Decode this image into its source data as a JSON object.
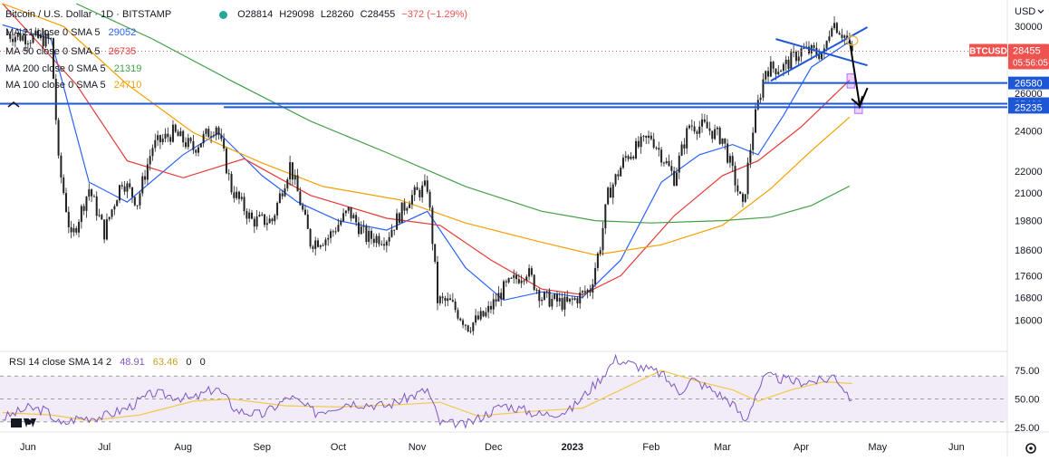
{
  "header": {
    "symbol_title": "Bitcoin / U.S. Dollar · 1D · BITSTAMP",
    "ohlc": [
      "O28814",
      "H29098",
      "L28260",
      "C28455",
      "−372 (−1.29%)"
    ],
    "currency": "USD"
  },
  "indicators": [
    {
      "label": "MA 21 close 0 SMA 5",
      "value": "29052",
      "color": "#2962ff"
    },
    {
      "label": "MA 50 close 0 SMA 5",
      "value": "26735",
      "color": "#e53935"
    },
    {
      "label": "MA 200 close 0 SMA 5",
      "value": "21319",
      "color": "#43a047"
    },
    {
      "label": "MA 100 close 0 SMA 5",
      "value": "24710",
      "color": "#f59f00"
    }
  ],
  "rsi": {
    "label": "RSI 14 close SMA 14 2",
    "values_text": [
      "48.91",
      "63.46",
      "0",
      "0"
    ]
  },
  "price_tag": {
    "symbol": "BTCUSD",
    "price": "28455",
    "timer": "05:56:05",
    "color": "#ef5350"
  },
  "level_tags": [
    {
      "text": "26580",
      "value": 26580
    },
    {
      "text": "25428",
      "value": 25428
    },
    {
      "text": "25235",
      "value": 25235
    }
  ],
  "axis": {
    "y_ticks": [
      "30000",
      "26000",
      "24000",
      "22000",
      "21000",
      "19800",
      "18600",
      "17600",
      "16800",
      "16000"
    ],
    "x_ticks": [
      "Jun",
      "Jul",
      "Aug",
      "Sep",
      "Oct",
      "Nov",
      "Dec",
      "2023",
      "Feb",
      "Mar",
      "Apr",
      "May",
      "Jun"
    ],
    "rsi_ticks": [
      "75.00",
      "50.00",
      "25.00"
    ]
  },
  "chart_data": {
    "type": "candlestick",
    "log_scale": true,
    "ylim": [
      15200,
      31500
    ],
    "x_start": "2022-05-21",
    "x_end": "2023-06-21",
    "candles_daily_close": [
      [
        "2022-05-24",
        29500
      ],
      [
        "2022-06-10",
        29100
      ],
      [
        "2022-06-13",
        22400
      ],
      [
        "2022-06-18",
        19000
      ],
      [
        "2022-06-25",
        21200
      ],
      [
        "2022-07-01",
        19300
      ],
      [
        "2022-07-08",
        21600
      ],
      [
        "2022-07-14",
        20600
      ],
      [
        "2022-07-20",
        23200
      ],
      [
        "2022-07-28",
        23900
      ],
      [
        "2022-08-05",
        23100
      ],
      [
        "2022-08-14",
        24300
      ],
      [
        "2022-08-20",
        21200
      ],
      [
        "2022-08-28",
        19800
      ],
      [
        "2022-09-05",
        19800
      ],
      [
        "2022-09-12",
        22300
      ],
      [
        "2022-09-20",
        18900
      ],
      [
        "2022-09-27",
        19100
      ],
      [
        "2022-10-05",
        20200
      ],
      [
        "2022-10-12",
        19100
      ],
      [
        "2022-10-20",
        19100
      ],
      [
        "2022-10-29",
        20800
      ],
      [
        "2022-11-05",
        21300
      ],
      [
        "2022-11-09",
        16700
      ],
      [
        "2022-11-14",
        16600
      ],
      [
        "2022-11-21",
        15800
      ],
      [
        "2022-11-28",
        16200
      ],
      [
        "2022-12-05",
        17100
      ],
      [
        "2022-12-14",
        17800
      ],
      [
        "2022-12-20",
        16800
      ],
      [
        "2022-12-30",
        16550
      ],
      [
        "2023-01-08",
        17100
      ],
      [
        "2023-01-12",
        18800
      ],
      [
        "2023-01-15",
        20900
      ],
      [
        "2023-01-22",
        22700
      ],
      [
        "2023-02-01",
        23700
      ],
      [
        "2023-02-10",
        21700
      ],
      [
        "2023-02-16",
        24300
      ],
      [
        "2023-02-22",
        24200
      ],
      [
        "2023-03-01",
        23600
      ],
      [
        "2023-03-09",
        20300
      ],
      [
        "2023-03-13",
        24100
      ],
      [
        "2023-03-18",
        27400
      ],
      [
        "2023-03-25",
        27500
      ],
      [
        "2023-04-01",
        28500
      ],
      [
        "2023-04-10",
        28300
      ],
      [
        "2023-04-13",
        30400
      ],
      [
        "2023-04-18",
        29400
      ],
      [
        "2023-04-21",
        28455
      ]
    ],
    "ma_lines": [
      {
        "name": "MA 21",
        "color": "#2962ff",
        "points": [
          [
            "2022-05-22",
            30100
          ],
          [
            "2022-06-10",
            29200
          ],
          [
            "2022-06-25",
            21500
          ],
          [
            "2022-07-10",
            20600
          ],
          [
            "2022-08-01",
            22800
          ],
          [
            "2022-08-15",
            23900
          ],
          [
            "2022-09-01",
            21800
          ],
          [
            "2022-09-15",
            20600
          ],
          [
            "2022-10-01",
            19800
          ],
          [
            "2022-10-20",
            19400
          ],
          [
            "2022-11-05",
            20200
          ],
          [
            "2022-11-20",
            17900
          ],
          [
            "2022-12-05",
            16700
          ],
          [
            "2022-12-20",
            17000
          ],
          [
            "2023-01-05",
            16800
          ],
          [
            "2023-01-20",
            18200
          ],
          [
            "2023-02-05",
            21500
          ],
          [
            "2023-02-20",
            22800
          ],
          [
            "2023-03-05",
            23300
          ],
          [
            "2023-03-15",
            22800
          ],
          [
            "2023-03-25",
            24800
          ],
          [
            "2023-04-05",
            27500
          ],
          [
            "2023-04-20",
            29052
          ]
        ]
      },
      {
        "name": "MA 50",
        "color": "#e53935",
        "points": [
          [
            "2022-05-22",
            31500
          ],
          [
            "2022-06-20",
            26500
          ],
          [
            "2022-07-10",
            22500
          ],
          [
            "2022-08-01",
            21700
          ],
          [
            "2022-08-25",
            22600
          ],
          [
            "2022-09-20",
            20900
          ],
          [
            "2022-10-20",
            19900
          ],
          [
            "2022-11-10",
            19600
          ],
          [
            "2022-11-30",
            18200
          ],
          [
            "2022-12-20",
            17100
          ],
          [
            "2023-01-05",
            16900
          ],
          [
            "2023-01-20",
            17600
          ],
          [
            "2023-02-10",
            20000
          ],
          [
            "2023-03-01",
            21800
          ],
          [
            "2023-03-15",
            22500
          ],
          [
            "2023-04-01",
            24200
          ],
          [
            "2023-04-20",
            26735
          ]
        ]
      },
      {
        "name": "MA 100",
        "color": "#f59f00",
        "points": [
          [
            "2022-05-22",
            31500
          ],
          [
            "2022-06-15",
            30000
          ],
          [
            "2022-07-10",
            26500
          ],
          [
            "2022-08-05",
            23900
          ],
          [
            "2022-09-01",
            22400
          ],
          [
            "2022-09-25",
            21300
          ],
          [
            "2022-10-25",
            20700
          ],
          [
            "2022-11-20",
            19700
          ],
          [
            "2022-12-20",
            18900
          ],
          [
            "2023-01-10",
            18400
          ],
          [
            "2023-02-05",
            18800
          ],
          [
            "2023-03-01",
            19600
          ],
          [
            "2023-03-20",
            21200
          ],
          [
            "2023-04-05",
            23000
          ],
          [
            "2023-04-20",
            24710
          ]
        ]
      },
      {
        "name": "MA 200",
        "color": "#43a047",
        "points": [
          [
            "2022-06-20",
            31500
          ],
          [
            "2022-07-20",
            29200
          ],
          [
            "2022-08-20",
            26700
          ],
          [
            "2022-09-20",
            24500
          ],
          [
            "2022-10-20",
            22900
          ],
          [
            "2022-11-20",
            21300
          ],
          [
            "2022-12-20",
            20200
          ],
          [
            "2023-01-10",
            19800
          ],
          [
            "2023-02-01",
            19700
          ],
          [
            "2023-03-01",
            19800
          ],
          [
            "2023-03-20",
            19950
          ],
          [
            "2023-04-05",
            20450
          ],
          [
            "2023-04-20",
            21319
          ]
        ]
      }
    ],
    "horizontal_levels": [
      {
        "value": 26580,
        "from": "2023-03-17",
        "to": "2023-06-21",
        "color": "#1e57d6"
      },
      {
        "value": 25428,
        "from": "2022-05-21",
        "to": "2023-06-21",
        "color": "#1e57d6"
      },
      {
        "value": 25235,
        "from": "2022-08-17",
        "to": "2023-06-21",
        "color": "#1e57d6"
      }
    ],
    "trend_lines": [
      {
        "from": [
          "2023-03-20",
          26700
        ],
        "to": [
          "2023-04-27",
          29950
        ],
        "color": "#1e57d6"
      },
      {
        "from": [
          "2023-03-22",
          29200
        ],
        "to": [
          "2023-04-27",
          27600
        ],
        "color": "#1e57d6"
      }
    ],
    "arrow": {
      "from": [
        "2023-04-20",
        29100
      ],
      "to": [
        "2023-04-24",
        25300
      ],
      "then": [
        "2023-04-27",
        26300
      ],
      "color": "#000000"
    },
    "zones": [
      {
        "from": "2023-04-19",
        "to": "2023-04-22",
        "low": 26300,
        "high": 27100,
        "color": "#c77dff"
      },
      {
        "from": "2023-04-22",
        "to": "2023-04-25",
        "low": 24900,
        "high": 25550,
        "color": "#c77dff"
      }
    ],
    "rsi_series": {
      "name": "RSI 14",
      "color": "#7e57c2",
      "ylim": [
        25,
        90
      ],
      "bands": [
        30,
        50,
        70
      ],
      "points": [
        [
          "2022-05-22",
          33
        ],
        [
          "2022-06-01",
          42
        ],
        [
          "2022-06-08",
          40
        ],
        [
          "2022-06-14",
          27
        ],
        [
          "2022-06-20",
          33
        ],
        [
          "2022-07-01",
          35
        ],
        [
          "2022-07-10",
          42
        ],
        [
          "2022-07-20",
          55
        ],
        [
          "2022-08-05",
          50
        ],
        [
          "2022-08-14",
          60
        ],
        [
          "2022-08-22",
          40
        ],
        [
          "2022-09-01",
          36
        ],
        [
          "2022-09-12",
          52
        ],
        [
          "2022-09-22",
          38
        ],
        [
          "2022-10-05",
          47
        ],
        [
          "2022-10-20",
          44
        ],
        [
          "2022-11-05",
          58
        ],
        [
          "2022-11-10",
          29
        ],
        [
          "2022-11-20",
          27
        ],
        [
          "2022-12-05",
          45
        ],
        [
          "2022-12-20",
          36
        ],
        [
          "2022-12-31",
          40
        ],
        [
          "2023-01-12",
          68
        ],
        [
          "2023-01-18",
          85
        ],
        [
          "2023-01-25",
          80
        ],
        [
          "2023-02-05",
          72
        ],
        [
          "2023-02-12",
          56
        ],
        [
          "2023-02-17",
          67
        ],
        [
          "2023-02-25",
          58
        ],
        [
          "2023-03-05",
          46
        ],
        [
          "2023-03-10",
          30
        ],
        [
          "2023-03-14",
          54
        ],
        [
          "2023-03-18",
          70
        ],
        [
          "2023-03-30",
          65
        ],
        [
          "2023-04-10",
          66
        ],
        [
          "2023-04-14",
          71
        ],
        [
          "2023-04-21",
          49
        ]
      ]
    },
    "rsi_sma": {
      "name": "SMA 14",
      "color": "#f2c94c",
      "points": [
        [
          "2022-05-22",
          38
        ],
        [
          "2022-06-10",
          36
        ],
        [
          "2022-06-25",
          31
        ],
        [
          "2022-07-15",
          36
        ],
        [
          "2022-08-05",
          48
        ],
        [
          "2022-08-20",
          50
        ],
        [
          "2022-09-10",
          44
        ],
        [
          "2022-10-01",
          43
        ],
        [
          "2022-10-25",
          45
        ],
        [
          "2022-11-10",
          47
        ],
        [
          "2022-11-25",
          35
        ],
        [
          "2022-12-15",
          39
        ],
        [
          "2023-01-05",
          42
        ],
        [
          "2023-01-20",
          58
        ],
        [
          "2023-02-05",
          75
        ],
        [
          "2023-02-20",
          65
        ],
        [
          "2023-03-05",
          58
        ],
        [
          "2023-03-15",
          48
        ],
        [
          "2023-03-28",
          58
        ],
        [
          "2023-04-10",
          65
        ],
        [
          "2023-04-21",
          63.46
        ]
      ]
    }
  }
}
